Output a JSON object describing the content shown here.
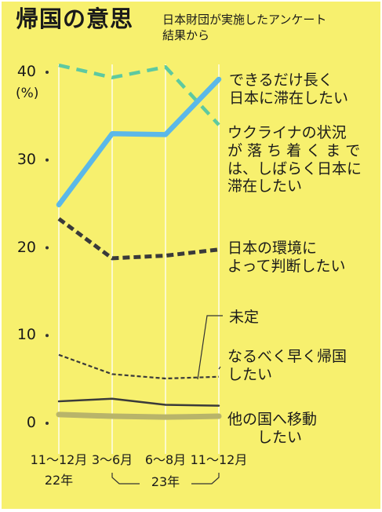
{
  "title": "帰国の意思",
  "subtitle": "日本財団が実施したアンケート\n結果から",
  "chart_data": {
    "type": "line",
    "unit_label": "(%)",
    "y_ticks": [
      0,
      10,
      20,
      30,
      40
    ],
    "ylim": [
      0,
      40
    ],
    "grid": false,
    "categories": [
      "11〜12月",
      "3〜6月",
      "6〜8月",
      "11〜12月"
    ],
    "year_labels": [
      "22年",
      "23年"
    ],
    "series": [
      {
        "name": "できるだけ長く\n日本に滞在したい",
        "values": [
          40.8,
          39.4,
          40.6,
          34.0
        ],
        "color": "#5ec9a0",
        "style": "dashed"
      },
      {
        "name": "ウクライナの状況\nが 落 ち 着 く ま で\nは、しばらく日本に\n滞在したい",
        "values": [
          24.9,
          33.0,
          32.9,
          39.2
        ],
        "color": "#5bb8e8",
        "style": "solid"
      },
      {
        "name": "日本の環境に\nよって判断したい",
        "values": [
          23.3,
          18.8,
          19.1,
          19.8
        ],
        "color": "#3a3a3a",
        "style": "bold-dashed"
      },
      {
        "name": "未定",
        "values": [
          2.5,
          2.8,
          2.1,
          2.0
        ],
        "color": "#3a3a3a",
        "style": "solid"
      },
      {
        "name": "なるべく早く帰国\nしたい",
        "values": [
          7.8,
          5.6,
          5.1,
          5.3
        ],
        "color": "#3a3a3a",
        "style": "dotted"
      },
      {
        "name": "他の国へ移動\n　　したい",
        "values": [
          1.0,
          0.8,
          0.7,
          0.8
        ],
        "color": "#b8b46a",
        "style": "solid"
      }
    ]
  }
}
